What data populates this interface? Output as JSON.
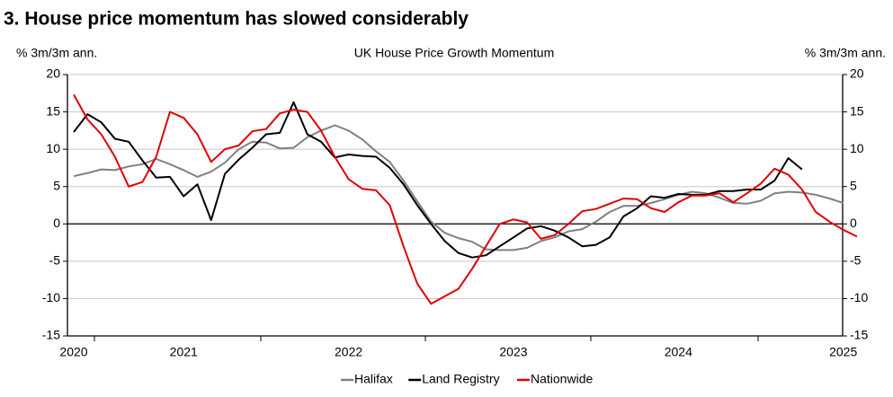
{
  "heading": "3. House price momentum has slowed considerably",
  "chart_data": {
    "type": "line",
    "title": "UK House Price Growth Momentum",
    "ylabel": "% 3m/3m ann.",
    "y2label": "% 3m/3m ann.",
    "categories": [
      "2020",
      null,
      null,
      null,
      null,
      null,
      null,
      null,
      "2021",
      null,
      null,
      null,
      null,
      null,
      null,
      null,
      null,
      null,
      null,
      null,
      "2022",
      null,
      null,
      null,
      null,
      null,
      null,
      null,
      null,
      null,
      null,
      null,
      "2023",
      null,
      null,
      null,
      null,
      null,
      null,
      null,
      null,
      null,
      null,
      null,
      "2024",
      null,
      null,
      null,
      null,
      null,
      null,
      null,
      null,
      null,
      null,
      null,
      "2025",
      null
    ],
    "series": [
      {
        "name": "Halifax",
        "color": "#808080",
        "values": [
          6.4,
          6.8,
          7.3,
          7.2,
          7.7,
          8,
          8.7,
          8,
          7.2,
          6.3,
          7,
          8.2,
          10,
          11,
          10.9,
          10.1,
          10.2,
          11.6,
          12.5,
          13.2,
          12.5,
          11.3,
          9.7,
          8.3,
          5.8,
          3,
          0.3,
          -1.2,
          -1.9,
          -2.4,
          -3.4,
          -3.5,
          -3.5,
          -3.2,
          -2.3,
          -1.8,
          -1,
          -0.7,
          0.3,
          1.6,
          2.4,
          2.4,
          2.8,
          3.3,
          3.9,
          4.3,
          4.1,
          3.5,
          2.8,
          2.7,
          3.1,
          4.1,
          4.3,
          4.2,
          3.9,
          3.4,
          2.8,
          null
        ]
      },
      {
        "name": "Land Registry",
        "color": "#000000",
        "values": [
          12.3,
          14.7,
          13.6,
          11.4,
          11,
          8.5,
          6.2,
          6.3,
          3.7,
          5.3,
          0.5,
          6.7,
          8.6,
          10.2,
          12,
          12.2,
          16.3,
          12,
          11,
          8.9,
          9.3,
          9.1,
          9,
          7.5,
          5.3,
          2.5,
          0,
          -2.3,
          -3.9,
          -4.5,
          -4.2,
          -3,
          -1.8,
          -0.6,
          -0.3,
          -0.9,
          -1.8,
          -3,
          -2.8,
          -1.8,
          1,
          2.1,
          3.7,
          3.5,
          4,
          3.9,
          3.9,
          4.4,
          4.4,
          4.6,
          4.6,
          5.8,
          8.8,
          7.3,
          null,
          null,
          null,
          null
        ]
      },
      {
        "name": "Nationwide",
        "color": "#e00000",
        "values": [
          17.3,
          14,
          12,
          9,
          5,
          5.6,
          9,
          15,
          14.2,
          12,
          8.3,
          10,
          10.5,
          12.4,
          12.7,
          14.8,
          15.3,
          15,
          12.5,
          9,
          6,
          4.7,
          4.5,
          2.5,
          -3,
          -8,
          -10.7,
          -9.7,
          -8.7,
          -6,
          -3,
          0,
          0.6,
          0.2,
          -2,
          -1.5,
          0,
          1.7,
          2,
          2.7,
          3.4,
          3.3,
          2.1,
          1.6,
          2.9,
          3.8,
          3.8,
          4.1,
          2.9,
          4.1,
          5.4,
          7.4,
          6.6,
          4.6,
          1.6,
          0.3,
          -0.8,
          -1.7
        ]
      }
    ],
    "ylim": [
      -15,
      20
    ],
    "yticks": [
      -15,
      -10,
      -5,
      0,
      5,
      10,
      15,
      20
    ],
    "y2lim": [
      -15,
      20
    ],
    "y2ticks": [
      -15,
      -10,
      -5,
      0,
      5,
      10,
      15,
      20
    ],
    "grid": true,
    "legend": "bottom"
  }
}
